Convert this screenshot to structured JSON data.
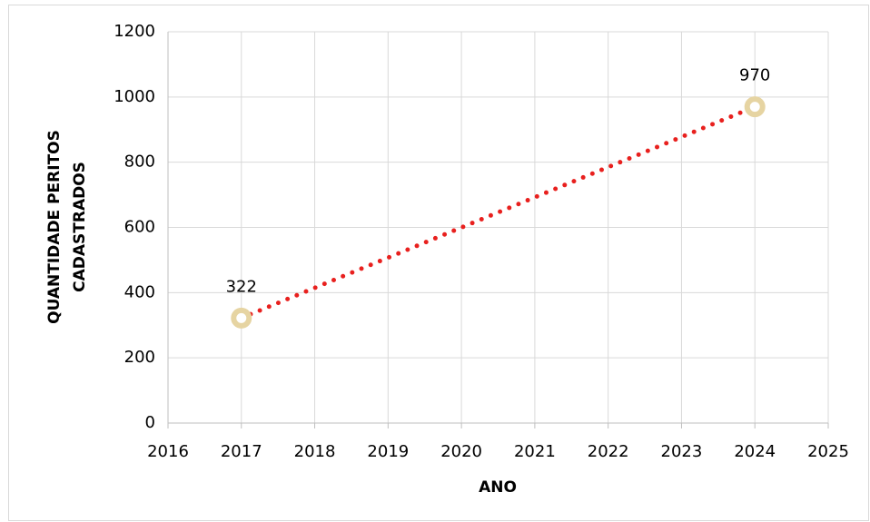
{
  "chart_data": {
    "type": "scatter",
    "x_label": "ANO",
    "y_label": [
      "QUANTIDADE PERITOS",
      "CADASTRADOS"
    ],
    "series": [
      {
        "x": [
          2017,
          2024
        ],
        "values": [
          322,
          970
        ],
        "color": "#e6d4a2",
        "line_color": "#e8201e",
        "line_style": "dotted"
      }
    ],
    "xlim": [
      2016,
      2025
    ],
    "xticks": [
      2016,
      2017,
      2018,
      2019,
      2020,
      2021,
      2022,
      2023,
      2024,
      2025
    ],
    "ylim": [
      0,
      1200
    ],
    "yticks": [
      0,
      200,
      400,
      600,
      800,
      1000,
      1200
    ],
    "grid": true
  }
}
